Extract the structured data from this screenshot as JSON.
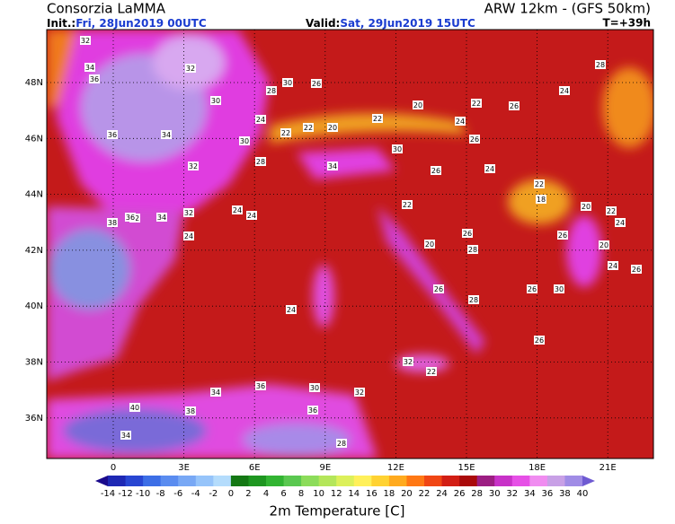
{
  "header": {
    "title": "Consorzia LaMMA",
    "model": "ARW 12km - (GFS 50km)",
    "init_label": "Init.:",
    "init_value": "Fri, 28Jun2019 00UTC",
    "valid_label": "Valid:",
    "valid_value": "Sat, 29Jun2019 15UTC",
    "lead": "T=+39h"
  },
  "map": {
    "lat_labels": [
      "48N",
      "46N",
      "44N",
      "42N",
      "40N",
      "38N",
      "36N"
    ],
    "lon_labels": [
      "0",
      "3E",
      "6E",
      "9E",
      "12E",
      "15E",
      "18E",
      "21E"
    ],
    "station_values": [
      "32",
      "34",
      "36",
      "32",
      "30",
      "28",
      "30",
      "26",
      "24",
      "22",
      "20",
      "22",
      "26",
      "24",
      "28",
      "36",
      "34",
      "30",
      "28",
      "22",
      "20",
      "22",
      "24",
      "26",
      "30",
      "34",
      "32",
      "26",
      "24",
      "22",
      "20",
      "18",
      "22",
      "24",
      "26",
      "20",
      "24",
      "26",
      "28",
      "32",
      "36",
      "38",
      "34",
      "32",
      "24",
      "24",
      "24",
      "22",
      "26",
      "20",
      "26",
      "28",
      "26",
      "30",
      "26",
      "24",
      "22",
      "32",
      "34",
      "36",
      "30",
      "32",
      "36",
      "38",
      "40",
      "34",
      "28"
    ]
  },
  "colorbar": {
    "ticks": [
      -14,
      -12,
      -10,
      -8,
      -6,
      -4,
      -2,
      0,
      2,
      4,
      6,
      8,
      10,
      12,
      14,
      16,
      18,
      20,
      22,
      24,
      26,
      28,
      30,
      32,
      34,
      36,
      38,
      40
    ],
    "title": "2m Temperature [C]"
  }
}
